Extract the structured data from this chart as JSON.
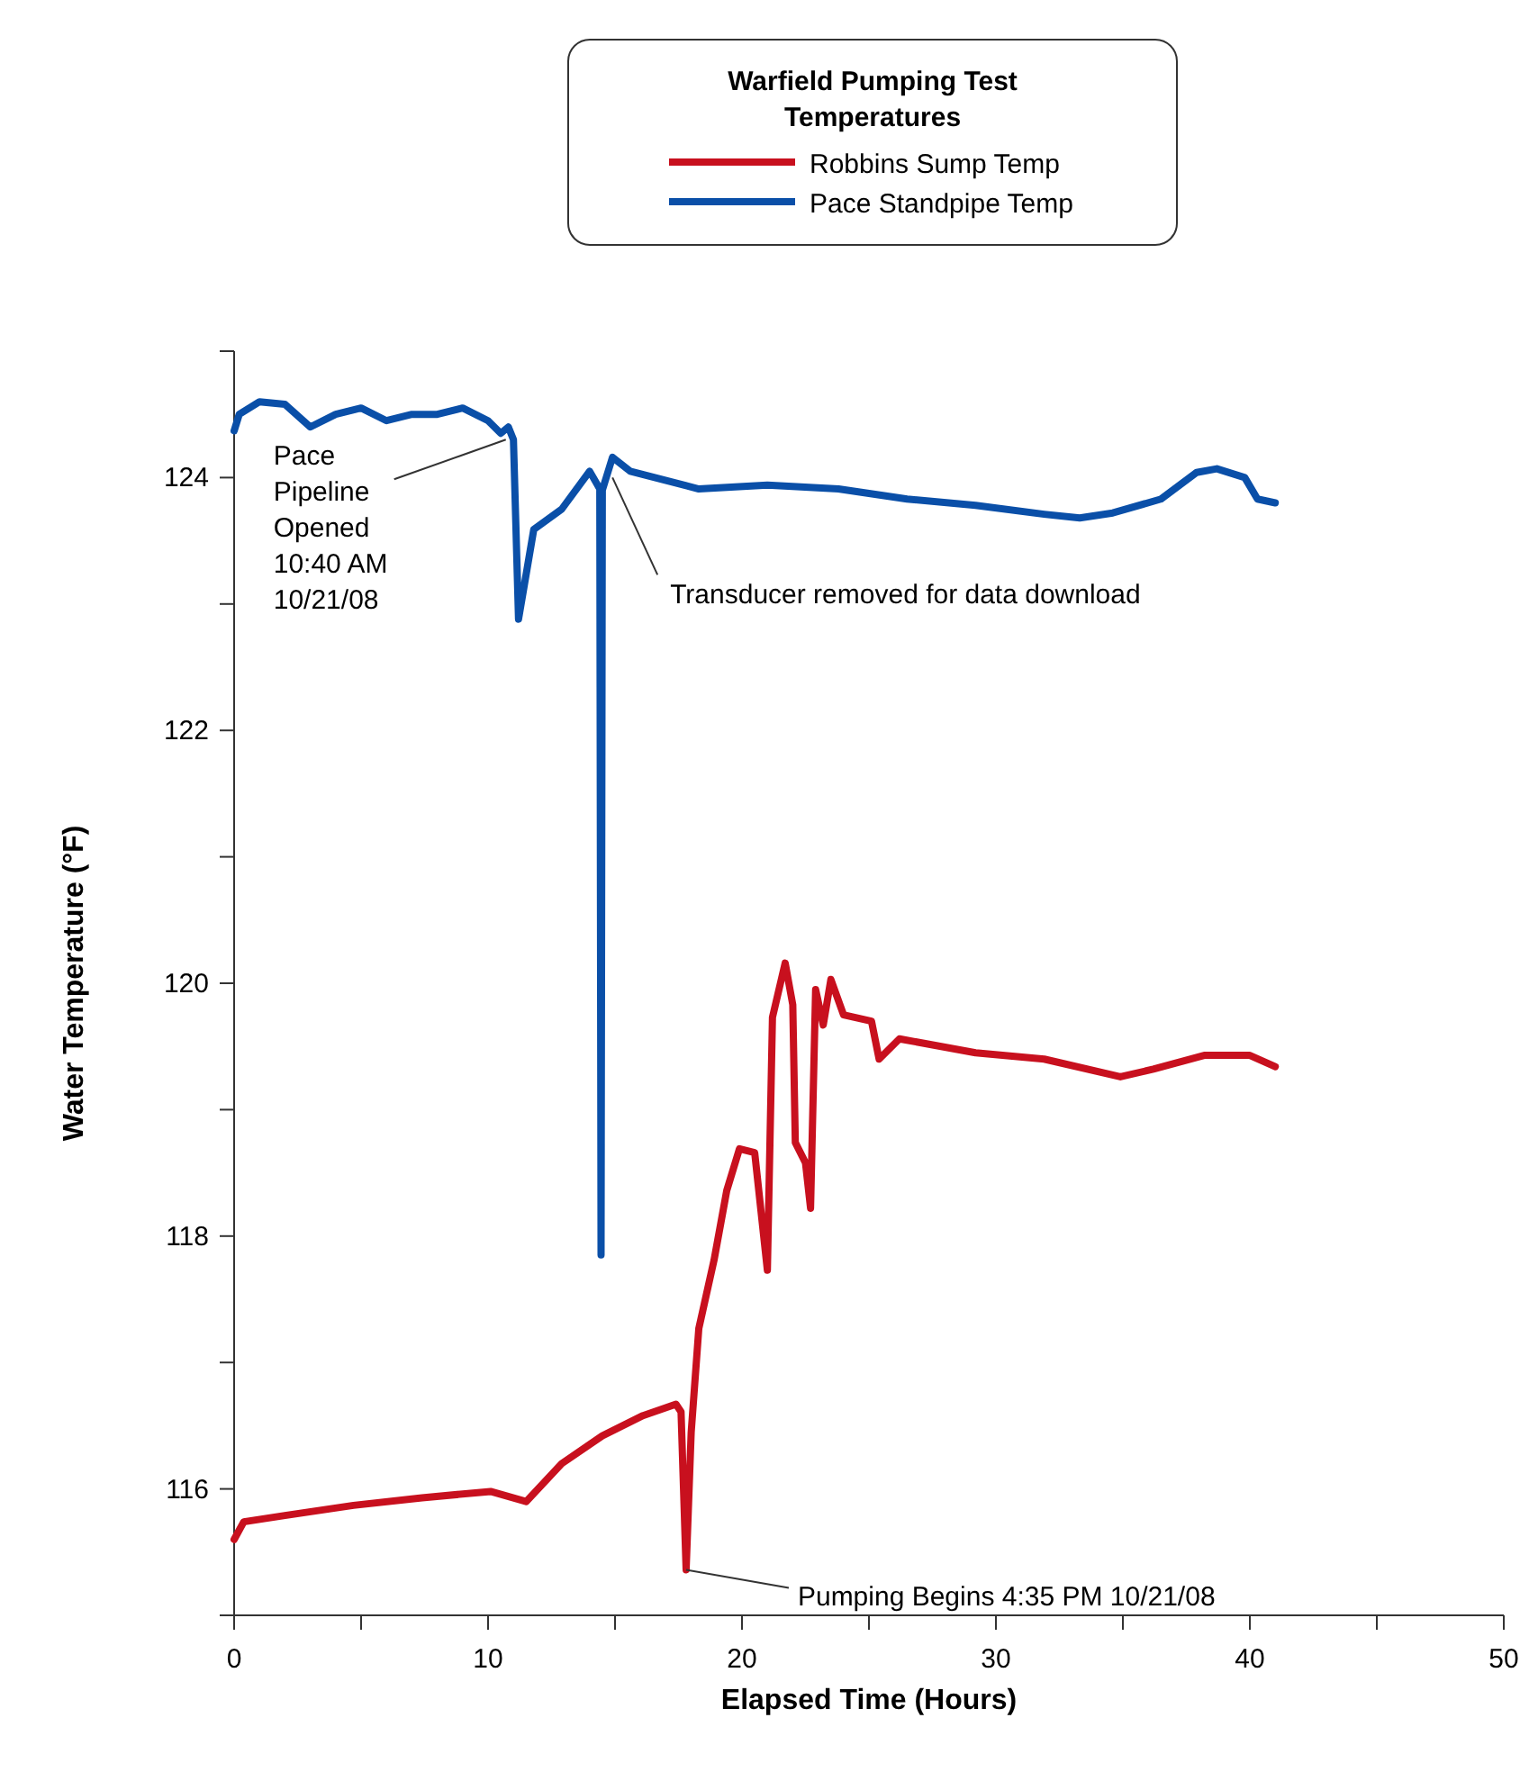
{
  "chart_data": {
    "type": "line",
    "legend_title": "Warfield Pumping Test Temperatures",
    "legend": "top",
    "xlabel": "Elapsed Time (Hours)",
    "ylabel": "Water Temperature (°F)",
    "xlim": [
      0,
      50
    ],
    "xticks": [
      0,
      {
        "value": 5,
        "label": null
      },
      10,
      {
        "value": 15,
        "label": null
      },
      20,
      {
        "value": 25,
        "label": null
      },
      30,
      {
        "value": 35,
        "label": null
      },
      40,
      {
        "value": 45,
        "label": null
      },
      50
    ],
    "ylim": [
      115,
      125
    ],
    "yticks": [
      {
        "value": 115,
        "label": null
      },
      116,
      {
        "value": 117,
        "label": null
      },
      118,
      {
        "value": 119,
        "label": null
      },
      120,
      {
        "value": 121,
        "label": null
      },
      122,
      {
        "value": 123,
        "label": null
      },
      124,
      {
        "value": 125,
        "label": null
      }
    ],
    "grid": false,
    "marker": "none",
    "line_style": "solid",
    "series": [
      {
        "name": "Robbins Sump Temp",
        "color": "#c8101e",
        "x": [
          0,
          0.38,
          2,
          4.7,
          7.4,
          10.1,
          11.5,
          12.9,
          14.5,
          16.1,
          17.4,
          17.6,
          17.8,
          18.0,
          18.3,
          18.9,
          19.4,
          19.9,
          20.5,
          21.0,
          21.2,
          21.7,
          22.0,
          22.1,
          22.5,
          22.7,
          22.9,
          23.2,
          23.5,
          24.0,
          25.1,
          25.4,
          26.2,
          29.2,
          31.9,
          34.9,
          36.2,
          38.2,
          40.0,
          41.0
        ],
        "values": [
          115.6,
          115.74,
          115.79,
          115.87,
          115.93,
          115.98,
          115.9,
          116.2,
          116.42,
          116.58,
          116.67,
          116.61,
          115.36,
          116.45,
          117.27,
          117.81,
          118.36,
          118.69,
          118.66,
          117.73,
          119.73,
          120.16,
          119.83,
          118.74,
          118.58,
          118.22,
          119.95,
          119.67,
          120.03,
          119.75,
          119.7,
          119.4,
          119.56,
          119.45,
          119.4,
          119.26,
          119.32,
          119.43,
          119.43,
          119.34
        ]
      },
      {
        "name": "Pace Standpipe Temp",
        "color": "#0a4fa8",
        "x": [
          0,
          0.2,
          1,
          2,
          3,
          4,
          5,
          6,
          7,
          8,
          9,
          10,
          10.5,
          10.8,
          11.0,
          11.2,
          11.8,
          12.9,
          14.0,
          14.4,
          14.45,
          14.5,
          14.9,
          15.6,
          18.3,
          21,
          23.8,
          26.5,
          29.2,
          31.9,
          33.3,
          34.6,
          36.5,
          37.9,
          38.7,
          39.8,
          40.3,
          41.0
        ],
        "values": [
          124.37,
          124.5,
          124.6,
          124.58,
          124.4,
          124.5,
          124.55,
          124.45,
          124.5,
          124.5,
          124.55,
          124.45,
          124.35,
          124.4,
          124.3,
          122.88,
          123.59,
          123.75,
          124.05,
          123.91,
          117.85,
          123.9,
          124.16,
          124.05,
          123.91,
          123.94,
          123.91,
          123.83,
          123.78,
          123.71,
          123.68,
          123.72,
          123.83,
          124.04,
          124.07,
          124.0,
          123.83,
          123.8
        ]
      }
    ],
    "annotations": [
      {
        "text": "Pace\nPipeline\nOpened\n10:40 AM\n10/21/08",
        "x": 10.7,
        "y": 124.3
      },
      {
        "text": "Transducer removed for data download",
        "x": 14.9,
        "y": 124.0
      },
      {
        "text": "Pumping Begins 4:35 PM 10/21/08",
        "x": 17.8,
        "y": 115.36
      }
    ]
  }
}
